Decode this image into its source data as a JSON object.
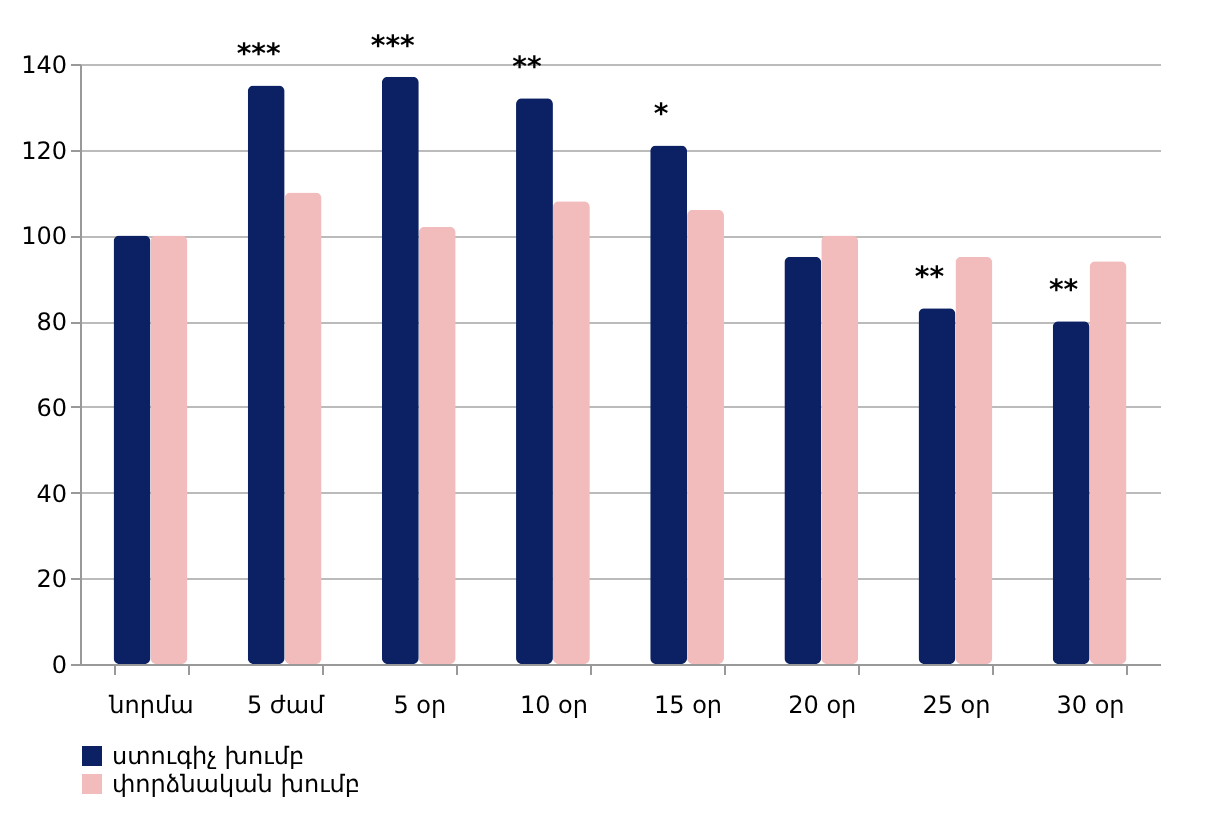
{
  "chart_data": {
    "type": "bar",
    "categories": [
      "նորմա",
      "5 ժամ",
      "5 օր",
      "10 օր",
      "15 օր",
      "20 օր",
      "25 օր",
      "30 օր"
    ],
    "series": [
      {
        "name": "ստուգիչ խումբ",
        "color": "#0b2163",
        "values": [
          100,
          135,
          137,
          132,
          121,
          95,
          83,
          80
        ]
      },
      {
        "name": "փորձնական խումբ",
        "color": "#f2bcbc",
        "values": [
          100,
          110,
          102,
          108,
          106,
          100,
          95,
          94
        ]
      }
    ],
    "annotations": [
      {
        "text": "***",
        "x": "5 ժամ",
        "y": 135
      },
      {
        "text": "***",
        "x": "5 օր",
        "y": 137
      },
      {
        "text": "**",
        "x": "10 օր",
        "y": 132
      },
      {
        "text": "*",
        "x": "15 օր",
        "y": 121
      },
      {
        "text": "**",
        "x": "25 օր",
        "y": 83
      },
      {
        "text": "**",
        "x": "30 օր",
        "y": 80
      }
    ],
    "ylim": [
      0,
      140
    ],
    "yticks": [
      0,
      20,
      40,
      60,
      80,
      100,
      120,
      140
    ],
    "grid": "y",
    "legend": "bottom"
  }
}
